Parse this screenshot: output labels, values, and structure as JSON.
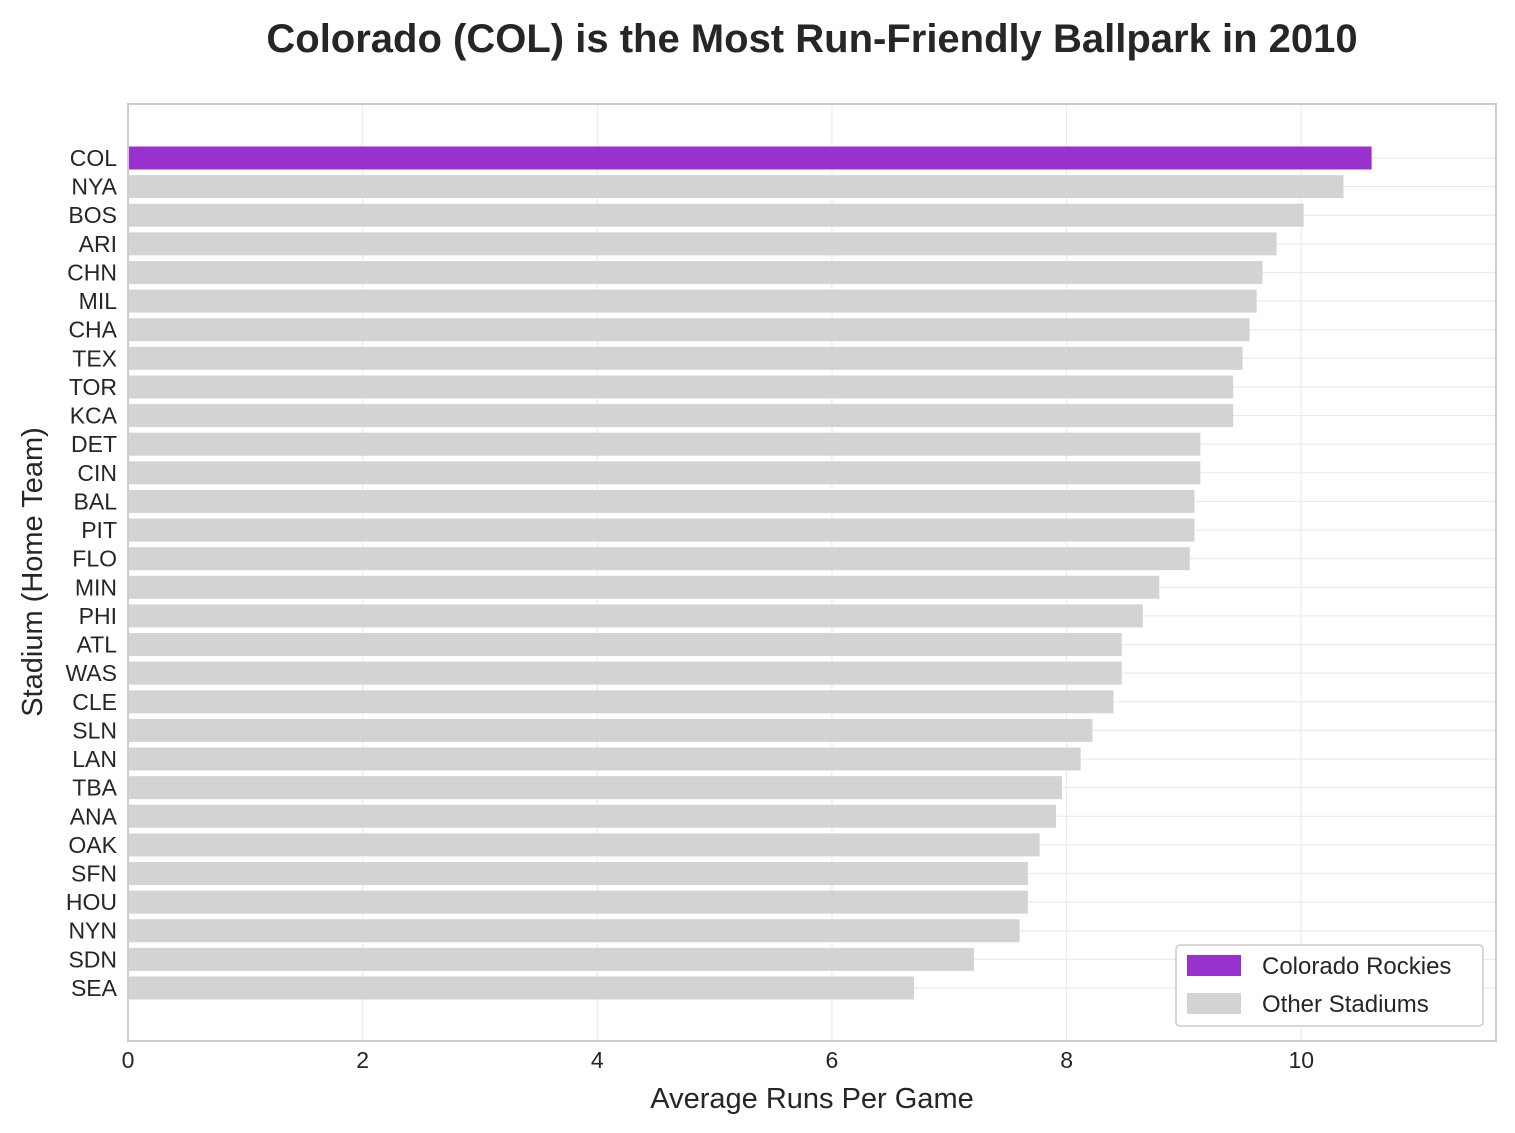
{
  "chart_data": {
    "type": "bar",
    "orientation": "horizontal",
    "title": "Colorado (COL) is the Most Run-Friendly Ballpark in 2010",
    "xlabel": "Average Runs Per Game",
    "ylabel": "Stadium (Home Team)",
    "xlim": [
      0,
      11.66
    ],
    "xticks": [
      0,
      2,
      4,
      6,
      8,
      10
    ],
    "grid": true,
    "legend_position": "bottom-right",
    "categories": [
      "COL",
      "NYA",
      "BOS",
      "ARI",
      "CHN",
      "MIL",
      "CHA",
      "TEX",
      "TOR",
      "KCA",
      "DET",
      "CIN",
      "BAL",
      "PIT",
      "FLO",
      "MIN",
      "PHI",
      "ATL",
      "WAS",
      "CLE",
      "SLN",
      "LAN",
      "TBA",
      "ANA",
      "OAK",
      "SFN",
      "HOU",
      "NYN",
      "SDN",
      "SEA"
    ],
    "values": [
      10.6,
      10.36,
      10.02,
      9.79,
      9.67,
      9.62,
      9.56,
      9.5,
      9.42,
      9.42,
      9.14,
      9.14,
      9.09,
      9.09,
      9.05,
      8.79,
      8.65,
      8.47,
      8.47,
      8.4,
      8.22,
      8.12,
      7.96,
      7.91,
      7.77,
      7.67,
      7.67,
      7.6,
      7.21,
      6.7
    ],
    "highlight_index": 0,
    "colors": {
      "highlight": "#9932CC",
      "other": "#D3D3D3"
    },
    "legend": [
      {
        "label": "Colorado Rockies",
        "color": "#9932CC"
      },
      {
        "label": "Other Stadiums",
        "color": "#D3D3D3"
      }
    ]
  }
}
